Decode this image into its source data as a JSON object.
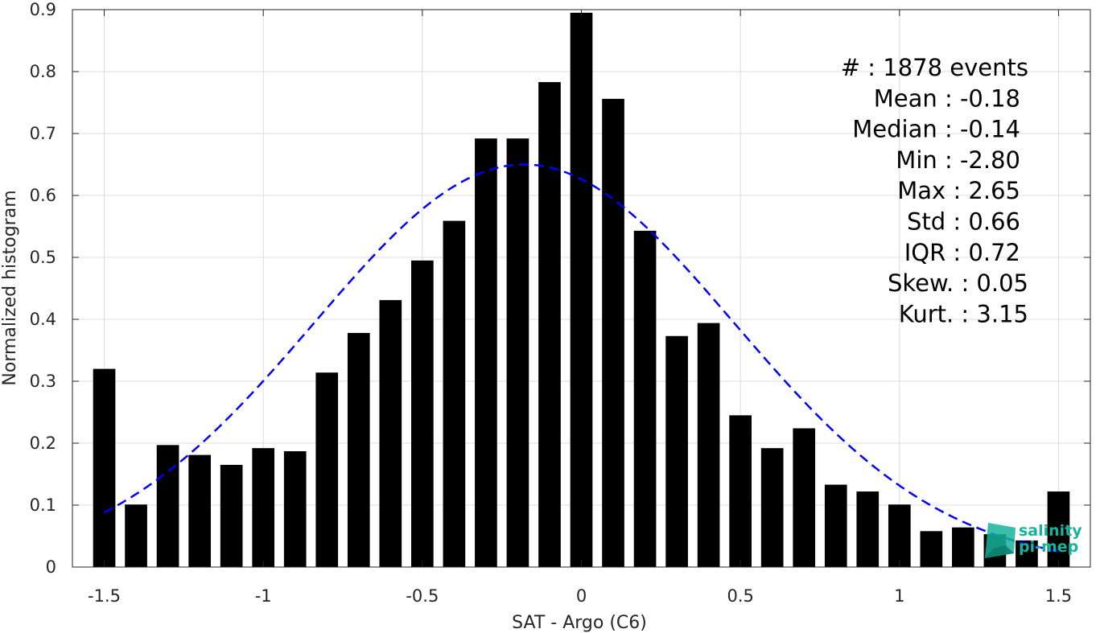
{
  "chart_data": {
    "type": "bar",
    "xlabel": "SAT - Argo (C6)",
    "ylabel": "Normalized histogram",
    "xlim": [
      -1.6,
      1.6
    ],
    "ylim": [
      0,
      0.9
    ],
    "xticks": [
      -1.5,
      -1,
      -0.5,
      0,
      0.5,
      1,
      1.5
    ],
    "xtick_labels": [
      "-1.5",
      "-1",
      "-0.5",
      "0",
      "0.5",
      "1",
      "1.5"
    ],
    "yticks": [
      0,
      0.1,
      0.2,
      0.3,
      0.4,
      0.5,
      0.6,
      0.7,
      0.8,
      0.9
    ],
    "ytick_labels": [
      "0",
      "0.1",
      "0.2",
      "0.3",
      "0.4",
      "0.5",
      "0.6",
      "0.7",
      "0.8",
      "0.9"
    ],
    "grid": true,
    "bar_color": "#000000",
    "bar_width": 0.07,
    "series": [
      {
        "x": [
          -1.5,
          -1.4,
          -1.3,
          -1.2,
          -1.1,
          -1.0,
          -0.9,
          -0.8,
          -0.7,
          -0.6,
          -0.5,
          -0.4,
          -0.3,
          -0.2,
          -0.1,
          0.0,
          0.1,
          0.2,
          0.3,
          0.4,
          0.5,
          0.6,
          0.7,
          0.8,
          0.9,
          1.0,
          1.1,
          1.2,
          1.3,
          1.4,
          1.5
        ],
        "values": [
          0.32,
          0.101,
          0.197,
          0.181,
          0.165,
          0.192,
          0.187,
          0.314,
          0.378,
          0.431,
          0.495,
          0.559,
          0.692,
          0.692,
          0.783,
          0.895,
          0.756,
          0.543,
          0.373,
          0.394,
          0.245,
          0.192,
          0.224,
          0.133,
          0.122,
          0.101,
          0.058,
          0.064,
          0.053,
          0.043,
          0.122
        ]
      }
    ],
    "fit_curve": {
      "type": "gaussian",
      "mean": -0.18,
      "std": 0.66,
      "peak": 0.65,
      "x_range": [
        -1.5,
        1.5
      ],
      "color": "#0000ff",
      "style": "dashed"
    },
    "annotations": [
      "#  : 1878 events",
      "Mean : -0.18",
      "Median : -0.14",
      "Min : -2.80",
      "Max : 2.65",
      "Std : 0.66",
      "IQR : 0.72",
      "Skew. : 0.05",
      "Kurt. : 3.15"
    ]
  },
  "logo": {
    "line1": "salinity",
    "line2": "pi-mep",
    "color": "#17b39a"
  }
}
